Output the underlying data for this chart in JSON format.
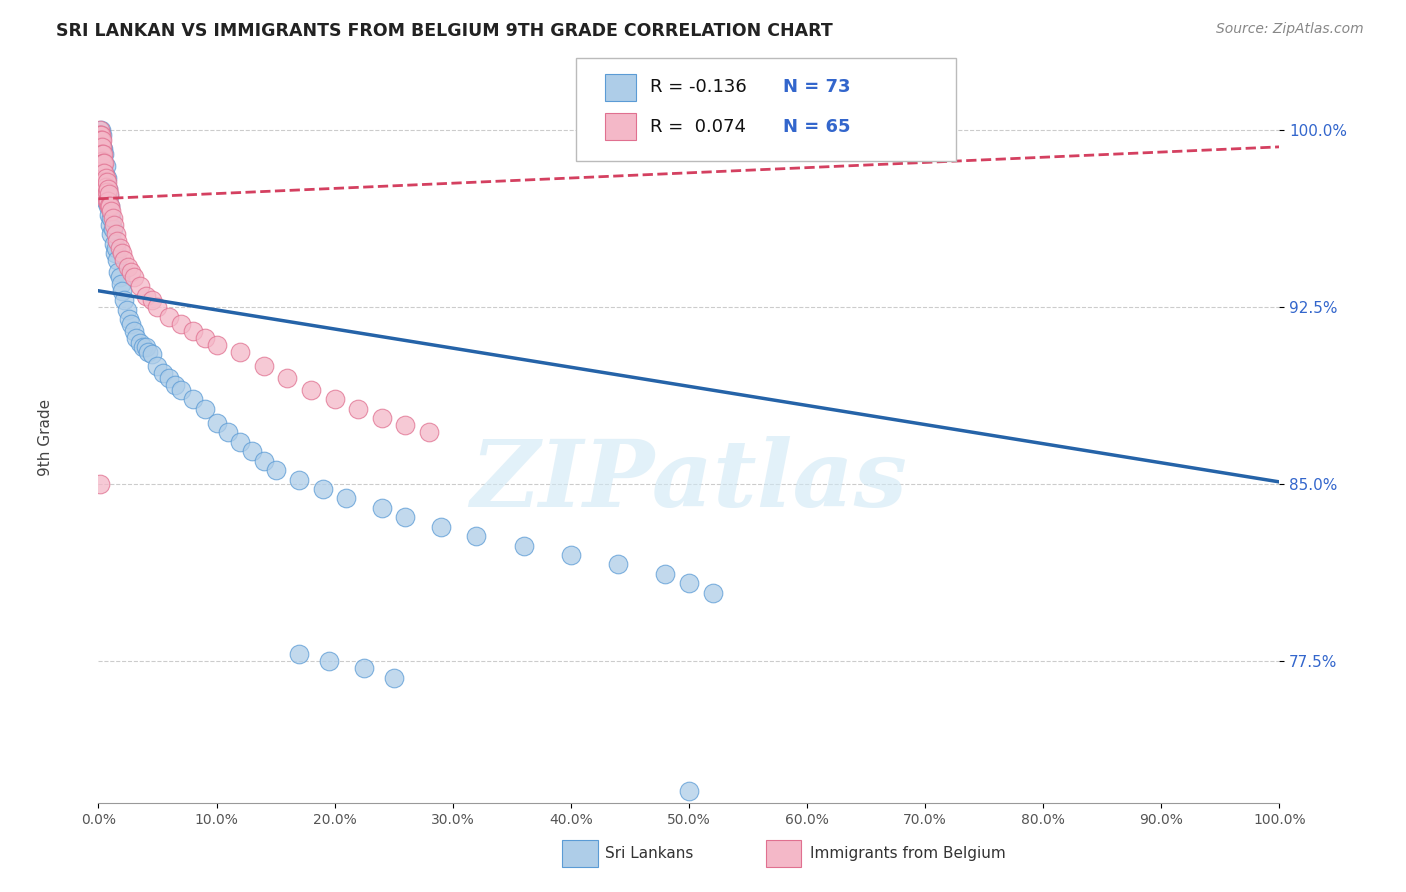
{
  "title": "SRI LANKAN VS IMMIGRANTS FROM BELGIUM 9TH GRADE CORRELATION CHART",
  "source": "Source: ZipAtlas.com",
  "ylabel": "9th Grade",
  "yticks": [
    0.775,
    0.85,
    0.925,
    1.0
  ],
  "ytick_labels": [
    "77.5%",
    "85.0%",
    "92.5%",
    "100.0%"
  ],
  "xlim": [
    0.0,
    1.0
  ],
  "ylim": [
    0.715,
    1.025
  ],
  "legend_label_blue": "Sri Lankans",
  "legend_label_pink": "Immigrants from Belgium",
  "blue_dot_color": "#aecde8",
  "blue_edge_color": "#5b9bd5",
  "pink_dot_color": "#f4b8c8",
  "pink_edge_color": "#e07090",
  "trend_blue_color": "#2563a8",
  "trend_pink_color": "#d44060",
  "watermark": "ZIPatlas",
  "watermark_color": "#d0e8f5",
  "blue_trend_start_y": 0.932,
  "blue_trend_end_y": 0.851,
  "pink_trend_start_y": 0.971,
  "pink_trend_end_y": 0.993,
  "sri_lankan_x": [
    0.001,
    0.001,
    0.002,
    0.002,
    0.002,
    0.003,
    0.003,
    0.003,
    0.003,
    0.004,
    0.004,
    0.005,
    0.005,
    0.005,
    0.006,
    0.006,
    0.006,
    0.007,
    0.007,
    0.008,
    0.008,
    0.009,
    0.009,
    0.01,
    0.01,
    0.011,
    0.011,
    0.012,
    0.013,
    0.014,
    0.015,
    0.016,
    0.017,
    0.018,
    0.019,
    0.02,
    0.022,
    0.024,
    0.026,
    0.028,
    0.03,
    0.032,
    0.035,
    0.038,
    0.04,
    0.042,
    0.045,
    0.05,
    0.055,
    0.06,
    0.065,
    0.07,
    0.08,
    0.09,
    0.1,
    0.11,
    0.12,
    0.13,
    0.14,
    0.15,
    0.17,
    0.19,
    0.21,
    0.24,
    0.26,
    0.29,
    0.32,
    0.36,
    0.4,
    0.44,
    0.48,
    0.5,
    0.52
  ],
  "sri_lankan_y": [
    0.995,
    0.988,
    1.0,
    0.996,
    0.99,
    0.998,
    0.993,
    0.986,
    0.98,
    0.992,
    0.984,
    0.99,
    0.982,
    0.975,
    0.985,
    0.978,
    0.97,
    0.98,
    0.972,
    0.975,
    0.968,
    0.972,
    0.964,
    0.968,
    0.96,
    0.963,
    0.956,
    0.958,
    0.952,
    0.948,
    0.95,
    0.945,
    0.94,
    0.938,
    0.935,
    0.932,
    0.928,
    0.924,
    0.92,
    0.918,
    0.915,
    0.912,
    0.91,
    0.908,
    0.908,
    0.906,
    0.905,
    0.9,
    0.897,
    0.895,
    0.892,
    0.89,
    0.886,
    0.882,
    0.876,
    0.872,
    0.868,
    0.864,
    0.86,
    0.856,
    0.852,
    0.848,
    0.844,
    0.84,
    0.836,
    0.832,
    0.828,
    0.824,
    0.82,
    0.816,
    0.812,
    0.808,
    0.804
  ],
  "belgium_x": [
    0.001,
    0.001,
    0.001,
    0.001,
    0.001,
    0.001,
    0.002,
    0.002,
    0.002,
    0.002,
    0.002,
    0.003,
    0.003,
    0.003,
    0.003,
    0.003,
    0.003,
    0.004,
    0.004,
    0.004,
    0.004,
    0.005,
    0.005,
    0.005,
    0.005,
    0.006,
    0.006,
    0.006,
    0.007,
    0.007,
    0.007,
    0.008,
    0.008,
    0.009,
    0.009,
    0.01,
    0.011,
    0.012,
    0.013,
    0.015,
    0.016,
    0.018,
    0.02,
    0.022,
    0.025,
    0.028,
    0.03,
    0.035,
    0.04,
    0.045,
    0.05,
    0.06,
    0.07,
    0.08,
    0.09,
    0.1,
    0.12,
    0.14,
    0.16,
    0.18,
    0.2,
    0.22,
    0.24,
    0.26,
    0.28
  ],
  "belgium_y": [
    1.0,
    0.998,
    0.998,
    0.996,
    0.994,
    0.992,
    0.998,
    0.996,
    0.993,
    0.99,
    0.988,
    0.996,
    0.993,
    0.99,
    0.987,
    0.984,
    0.98,
    0.99,
    0.986,
    0.982,
    0.978,
    0.986,
    0.982,
    0.978,
    0.974,
    0.98,
    0.976,
    0.972,
    0.978,
    0.974,
    0.97,
    0.975,
    0.97,
    0.973,
    0.968,
    0.968,
    0.966,
    0.963,
    0.96,
    0.956,
    0.953,
    0.95,
    0.948,
    0.945,
    0.942,
    0.94,
    0.938,
    0.934,
    0.93,
    0.928,
    0.925,
    0.921,
    0.918,
    0.915,
    0.912,
    0.909,
    0.906,
    0.9,
    0.895,
    0.89,
    0.886,
    0.882,
    0.878,
    0.875,
    0.872
  ],
  "blue_lone_points_x": [
    0.5,
    0.5,
    0.17,
    0.19,
    0.21,
    0.24
  ],
  "blue_lone_points_y": [
    0.72,
    0.72,
    0.777,
    0.775,
    0.773,
    0.77
  ]
}
